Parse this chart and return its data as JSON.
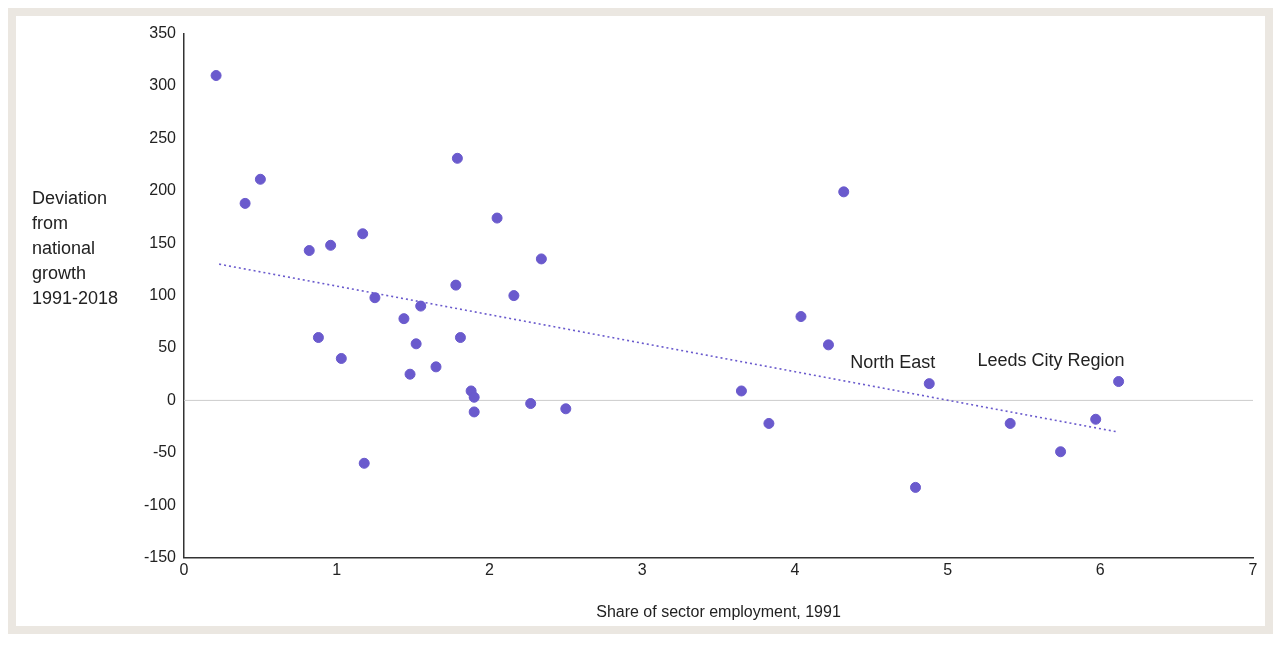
{
  "chart_data": {
    "type": "scatter",
    "xlabel": "Share of sector employment, 1991",
    "ylabel": "Deviation from national growth 1991-2018",
    "xlim": [
      0,
      7
    ],
    "xticks": [
      0,
      1,
      2,
      3,
      4,
      5,
      6,
      7
    ],
    "ylim": [
      -150,
      350
    ],
    "yticks": [
      -150,
      -100,
      -50,
      0,
      50,
      100,
      150,
      200,
      250,
      300,
      350
    ],
    "grid": false,
    "legend": false,
    "marker": "circle",
    "ref_lines": [
      {
        "axis": "y",
        "value": 0,
        "color": "#cccccc"
      }
    ],
    "annotations": [
      {
        "text": "North East",
        "x": 4.88,
        "y": 16
      },
      {
        "text": "Leeds City Region",
        "x": 6.12,
        "y": 18
      }
    ],
    "series": [
      {
        "type": "scatter",
        "color": "#6a5acd",
        "x": [
          0.21,
          0.4,
          0.5,
          0.82,
          0.88,
          0.96,
          1.03,
          1.17,
          1.18,
          1.25,
          1.44,
          1.48,
          1.52,
          1.55,
          1.65,
          1.78,
          1.79,
          1.81,
          1.88,
          1.9,
          1.9,
          2.05,
          2.16,
          2.27,
          2.34,
          2.5,
          3.65,
          3.83,
          4.04,
          4.22,
          4.32,
          4.79,
          4.88,
          5.41,
          5.74,
          5.97,
          6.12
        ],
        "values": [
          310,
          188,
          211,
          143,
          60,
          148,
          40,
          159,
          -60,
          98,
          78,
          25,
          54,
          90,
          32,
          110,
          231,
          60,
          9,
          3,
          -11,
          174,
          100,
          -3,
          135,
          -8,
          9,
          -22,
          80,
          53,
          199,
          -83,
          16,
          -22,
          -49,
          -18,
          18
        ]
      },
      {
        "type": "line",
        "color": "#6a5acd",
        "line_style": "dotted",
        "marker": "none",
        "x": [
          0.23,
          6.11
        ],
        "values": [
          130,
          -30
        ]
      }
    ]
  }
}
